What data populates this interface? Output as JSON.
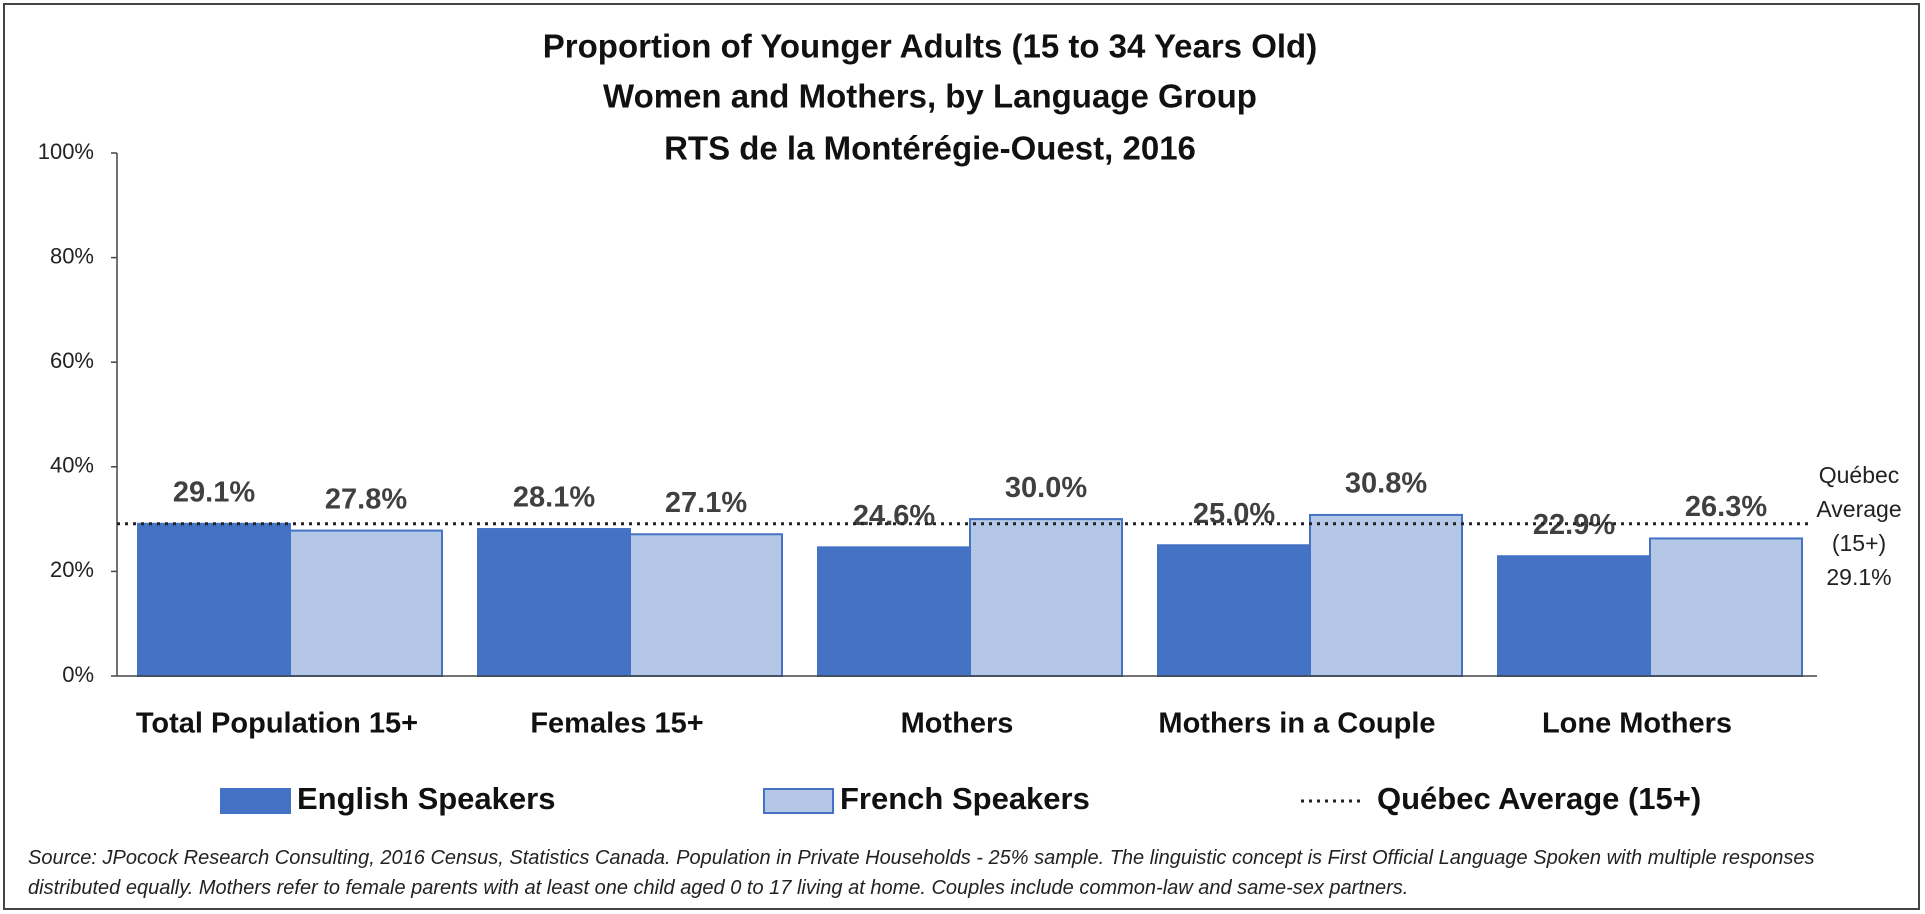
{
  "chart_data": {
    "type": "bar",
    "title": [
      "Proportion of Younger Adults (15 to 34 Years Old)",
      "Women and Mothers, by Language Group",
      "RTS de la Montérégie-Ouest, 2016"
    ],
    "categories": [
      "Total Population 15+",
      "Females 15+",
      "Mothers",
      "Mothers in a Couple",
      "Lone Mothers"
    ],
    "series": [
      {
        "name": "English Speakers",
        "color": "#4472c4",
        "values": [
          29.1,
          28.1,
          24.6,
          25.0,
          22.9
        ],
        "value_labels": [
          "29.1%",
          "28.1%",
          "24.6%",
          "25.0%",
          "22.9%"
        ]
      },
      {
        "name": "French Speakers",
        "color": "#b4c7e7",
        "values": [
          27.8,
          27.1,
          30.0,
          30.8,
          26.3
        ],
        "value_labels": [
          "27.8%",
          "27.1%",
          "30.0%",
          "30.8%",
          "26.3%"
        ]
      }
    ],
    "reference": {
      "name": "Québec Average (15+)",
      "value": 29.1,
      "value_label": "29.1%"
    },
    "ylim": [
      0,
      100
    ],
    "yticks": [
      {
        "value": 0,
        "label": "0%"
      },
      {
        "value": 20,
        "label": "20%"
      },
      {
        "value": 40,
        "label": "40%"
      },
      {
        "value": 60,
        "label": "60%"
      },
      {
        "value": 80,
        "label": "80%"
      },
      {
        "value": 100,
        "label": "100%"
      }
    ],
    "source": "Source: JPocock Research Consulting, 2016 Census, Statistics Canada. Population in Private Households - 25% sample. The linguistic concept is First Official Language Spoken with multiple responses distributed equally. Mothers refer to female parents with at least one child aged 0 to 17 living at home. Couples include common-law and same-sex partners."
  }
}
